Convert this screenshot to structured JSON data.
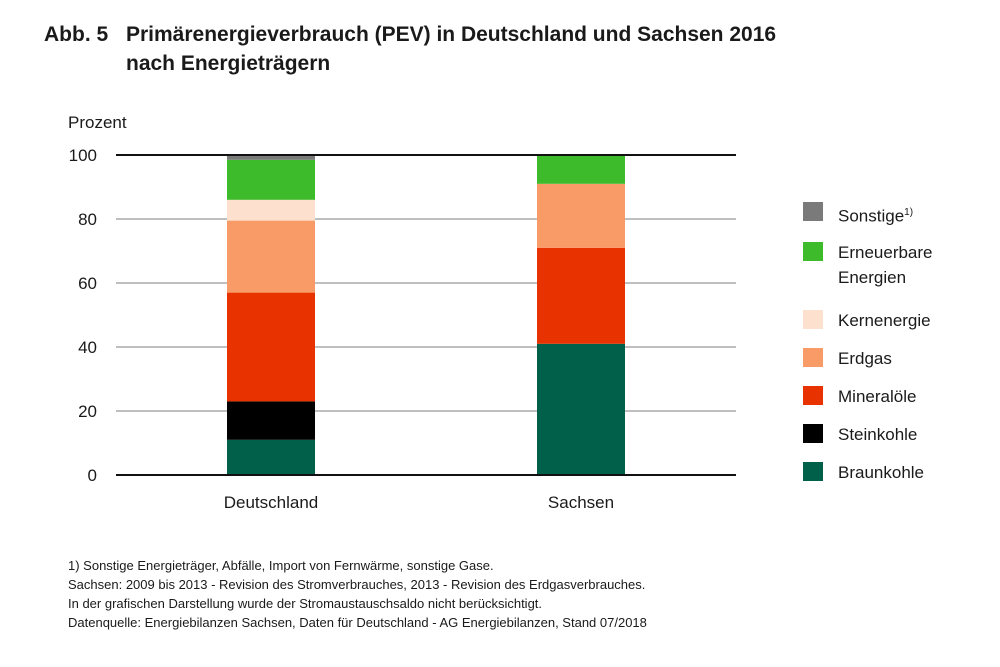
{
  "title": {
    "number": "Abb. 5",
    "line1": "Primärenergieverbrauch (PEV) in Deutschland und Sachsen 2016",
    "line2": "nach Energieträgern"
  },
  "chart_data": {
    "type": "bar",
    "stacked": true,
    "title": "Primärenergieverbrauch (PEV) in Deutschland und Sachsen 2016 nach Energieträgern",
    "xlabel": "",
    "ylabel": "Prozent",
    "ylim": [
      0,
      100
    ],
    "yticks": [
      0,
      20,
      40,
      60,
      80,
      100
    ],
    "grid": true,
    "legend_position": "right",
    "categories": [
      "Deutschland",
      "Sachsen"
    ],
    "series": [
      {
        "name": "Braunkohle",
        "color": "#00604a",
        "values": [
          11,
          41
        ]
      },
      {
        "name": "Steinkohle",
        "color": "#000000",
        "values": [
          12,
          0
        ]
      },
      {
        "name": "Mineralöle",
        "color": "#e83200",
        "values": [
          34,
          30
        ]
      },
      {
        "name": "Erdgas",
        "color": "#f99b67",
        "values": [
          22.5,
          20
        ]
      },
      {
        "name": "Kernenergie",
        "color": "#fde0cd",
        "values": [
          6.5,
          0
        ]
      },
      {
        "name": "Erneuerbare Energien",
        "color": "#3dbb2a",
        "values": [
          12.5,
          9
        ]
      },
      {
        "name": "Sonstige",
        "color": "#7a7a7a",
        "values": [
          1.5,
          0
        ]
      }
    ]
  },
  "legend": [
    {
      "label": "Sonstige",
      "sup": "1)",
      "color": "#7a7a7a"
    },
    {
      "label": "Erneuerbare Energien",
      "color": "#3dbb2a"
    },
    {
      "label": "Kernenergie",
      "color": "#fde0cd"
    },
    {
      "label": "Erdgas",
      "color": "#f99b67"
    },
    {
      "label": "Mineralöle",
      "color": "#e83200"
    },
    {
      "label": "Steinkohle",
      "color": "#000000"
    },
    {
      "label": "Braunkohle",
      "color": "#00604a"
    }
  ],
  "footnotes": [
    "1) Sonstige Energieträger, Abfälle, Import von Fernwärme, sonstige Gase.",
    "Sachsen: 2009 bis 2013 - Revision des Stromverbrauches, 2013 - Revision des Erdgasverbrauches.",
    "In der grafischen Darstellung wurde der Stromaustauschsaldo nicht berücksichtigt.",
    "Datenquelle: Energiebilanzen Sachsen, Daten für Deutschland - AG Energiebilanzen, Stand 07/2018"
  ]
}
